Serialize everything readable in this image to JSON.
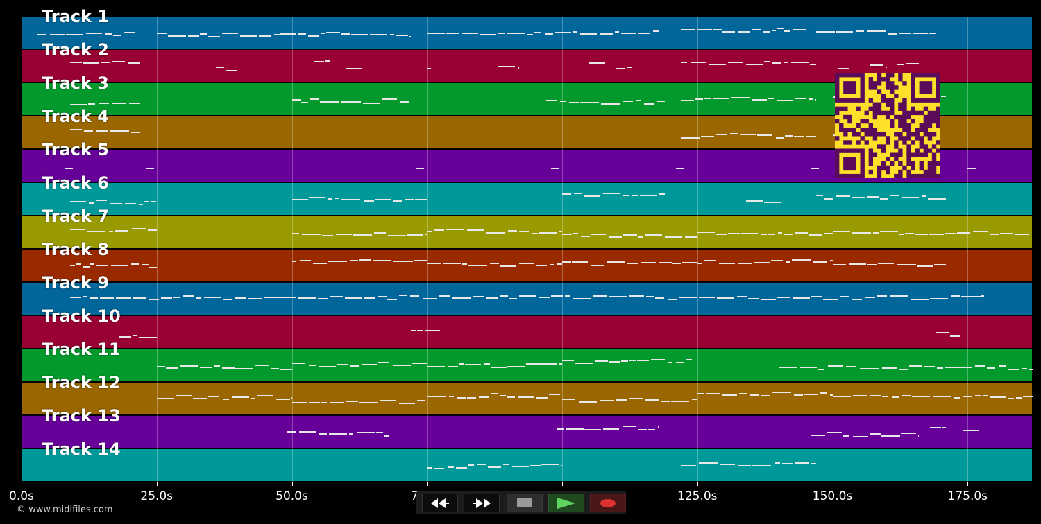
{
  "tracks": [
    {
      "label": "Track 1",
      "color": "#016699"
    },
    {
      "label": "Track 2",
      "color": "#990033"
    },
    {
      "label": "Track 3",
      "color": "#03992c"
    },
    {
      "label": "Track 4",
      "color": "#996600"
    },
    {
      "label": "Track 5",
      "color": "#660099"
    },
    {
      "label": "Track 6",
      "color": "#009999"
    },
    {
      "label": "Track 7",
      "color": "#999900"
    },
    {
      "label": "Track 8",
      "color": "#992a00"
    },
    {
      "label": "Track 9",
      "color": "#016699"
    },
    {
      "label": "Track 10",
      "color": "#990033"
    },
    {
      "label": "Track 11",
      "color": "#03992c"
    },
    {
      "label": "Track 12",
      "color": "#996600"
    },
    {
      "label": "Track 13",
      "color": "#660099"
    },
    {
      "label": "Track 14",
      "color": "#009999"
    }
  ],
  "timeline": {
    "ticks": [
      "0.0s",
      "25.0s",
      "50.0s",
      "75.0s",
      "100.0s",
      "125.0s",
      "150.0s",
      "175.0s"
    ],
    "tick_values_s": [
      0,
      25,
      50,
      75,
      100,
      125,
      150,
      175
    ],
    "duration_s": 186.9
  },
  "copyright": "© www.midifiles.com",
  "transport": {
    "buttons": [
      {
        "name": "rewind-button",
        "icon": "rewind-icon"
      },
      {
        "name": "fast-forward-button",
        "icon": "fast-forward-icon"
      },
      {
        "name": "stop-button",
        "icon": "stop-icon"
      },
      {
        "name": "play-button",
        "icon": "play-icon",
        "color": "#55cc55"
      },
      {
        "name": "record-button",
        "icon": "record-icon",
        "color": "#dd3333"
      }
    ]
  },
  "qr_code": {
    "colors": {
      "background": "#fde02a",
      "modules": "#5a0c5a"
    }
  },
  "chart_data": {
    "type": "piano-roll",
    "x_unit": "s",
    "xlim": [
      0,
      186.9
    ],
    "segments_by_track": [
      [
        [
          3,
          21
        ],
        [
          25,
          72
        ],
        [
          75,
          118
        ],
        [
          122,
          145
        ],
        [
          147,
          169
        ]
      ],
      [
        [
          9,
          22
        ],
        [
          36,
          40
        ],
        [
          54,
          57
        ],
        [
          60,
          63
        ],
        [
          75,
          75.5
        ],
        [
          88,
          92
        ],
        [
          105,
          108
        ],
        [
          110,
          113
        ],
        [
          122,
          147
        ],
        [
          151,
          153
        ],
        [
          157,
          160
        ],
        [
          162,
          166
        ]
      ],
      [
        [
          9,
          22
        ],
        [
          50,
          72
        ],
        [
          97,
          119
        ],
        [
          122,
          147
        ],
        [
          150,
          171
        ]
      ],
      [
        [
          9,
          22
        ],
        [
          122,
          147
        ],
        [
          150,
          152
        ]
      ],
      [
        [
          8,
          9.5
        ],
        [
          23,
          24.5
        ],
        [
          73,
          74.5
        ],
        [
          98,
          99.5
        ],
        [
          121,
          122.5
        ],
        [
          146,
          147.5
        ],
        [
          175,
          176.5
        ]
      ],
      [
        [
          9,
          25
        ],
        [
          50,
          75
        ],
        [
          100,
          119
        ],
        [
          134,
          141
        ],
        [
          147,
          171
        ]
      ],
      [
        [
          9,
          25
        ],
        [
          50,
          75
        ],
        [
          75,
          100
        ],
        [
          100,
          125
        ],
        [
          125,
          150
        ],
        [
          150,
          187
        ]
      ],
      [
        [
          9,
          25
        ],
        [
          50,
          75
        ],
        [
          75,
          100
        ],
        [
          100,
          125
        ],
        [
          125,
          150
        ],
        [
          150,
          171
        ]
      ],
      [
        [
          9,
          178
        ]
      ],
      [
        [
          18,
          25
        ],
        [
          72,
          78
        ],
        [
          169,
          174
        ]
      ],
      [
        [
          25,
          50
        ],
        [
          50,
          75
        ],
        [
          75,
          100
        ],
        [
          100,
          124
        ],
        [
          140,
          187
        ]
      ],
      [
        [
          25,
          50
        ],
        [
          50,
          75
        ],
        [
          75,
          100
        ],
        [
          100,
          125
        ],
        [
          125,
          150
        ],
        [
          150,
          187
        ]
      ],
      [
        [
          49,
          68
        ],
        [
          99,
          118
        ],
        [
          146,
          166
        ],
        [
          168,
          171
        ],
        [
          174,
          177
        ]
      ],
      [
        [
          75,
          100
        ],
        [
          122,
          147
        ]
      ]
    ]
  }
}
